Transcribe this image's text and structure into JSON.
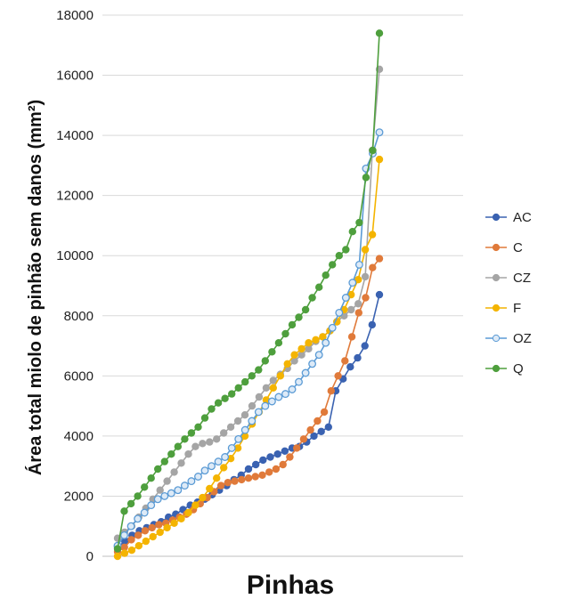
{
  "chart_data": {
    "type": "line",
    "xlabel": "Pinhas",
    "ylabel": "Área total miolo de pinhão sem danos  (mm²)",
    "ylim": [
      0,
      18000
    ],
    "yticks": [
      0,
      2000,
      4000,
      6000,
      8000,
      10000,
      12000,
      14000,
      16000,
      18000
    ],
    "grid": "horizontal",
    "legend_position": "right",
    "series": [
      {
        "name": "AC",
        "color": "#3a62b1",
        "values": [
          300,
          500,
          700,
          850,
          950,
          1050,
          1150,
          1300,
          1400,
          1550,
          1700,
          1800,
          1900,
          2050,
          2200,
          2350,
          2550,
          2700,
          2900,
          3050,
          3200,
          3300,
          3400,
          3500,
          3600,
          3650,
          3800,
          4000,
          4150,
          4300,
          5500,
          5900,
          6300,
          6600,
          7000,
          7700,
          8700
        ]
      },
      {
        "name": "C",
        "color": "#e07a3a",
        "values": [
          150,
          300,
          550,
          700,
          850,
          950,
          1050,
          1100,
          1200,
          1300,
          1400,
          1550,
          1750,
          1950,
          2150,
          2350,
          2450,
          2500,
          2550,
          2600,
          2650,
          2700,
          2800,
          2900,
          3050,
          3300,
          3600,
          3900,
          4200,
          4500,
          4800,
          5500,
          6000,
          6500,
          7300,
          8100,
          8600,
          9600,
          9900
        ]
      },
      {
        "name": "CZ",
        "color": "#a5a5a5",
        "values": [
          600,
          800,
          1000,
          1300,
          1600,
          1900,
          2200,
          2500,
          2800,
          3100,
          3400,
          3650,
          3750,
          3800,
          3900,
          4100,
          4300,
          4500,
          4700,
          5000,
          5300,
          5600,
          5850,
          6050,
          6250,
          6500,
          6700,
          6900,
          7150,
          7300,
          7500,
          7800,
          8000,
          8200,
          8400,
          9300,
          13500,
          16200
        ]
      },
      {
        "name": "F",
        "color": "#f4b400",
        "values": [
          0,
          100,
          200,
          350,
          500,
          650,
          800,
          950,
          1100,
          1250,
          1450,
          1700,
          1950,
          2250,
          2600,
          2950,
          3250,
          3600,
          4000,
          4400,
          4800,
          5200,
          5600,
          6000,
          6400,
          6700,
          6900,
          7100,
          7200,
          7300,
          7500,
          7800,
          8200,
          8700,
          9200,
          10200,
          10700,
          13200
        ]
      },
      {
        "name": "OZ",
        "color": "#5b9bd5",
        "values": [
          350,
          700,
          1000,
          1250,
          1450,
          1700,
          1900,
          2000,
          2100,
          2200,
          2350,
          2500,
          2650,
          2850,
          3000,
          3150,
          3300,
          3600,
          3900,
          4200,
          4500,
          4800,
          5000,
          5150,
          5300,
          5400,
          5550,
          5800,
          6100,
          6400,
          6700,
          7100,
          7600,
          8100,
          8600,
          9100,
          9700,
          12900,
          13400,
          14100
        ]
      },
      {
        "name": "Q",
        "color": "#4e9f3d",
        "values": [
          250,
          1500,
          1750,
          2000,
          2300,
          2600,
          2900,
          3150,
          3400,
          3650,
          3900,
          4100,
          4300,
          4600,
          4900,
          5100,
          5250,
          5400,
          5600,
          5800,
          6000,
          6200,
          6500,
          6800,
          7100,
          7400,
          7700,
          7950,
          8200,
          8600,
          8950,
          9350,
          9700,
          10000,
          10200,
          10800,
          11100,
          12600,
          13500,
          17400
        ]
      }
    ]
  }
}
